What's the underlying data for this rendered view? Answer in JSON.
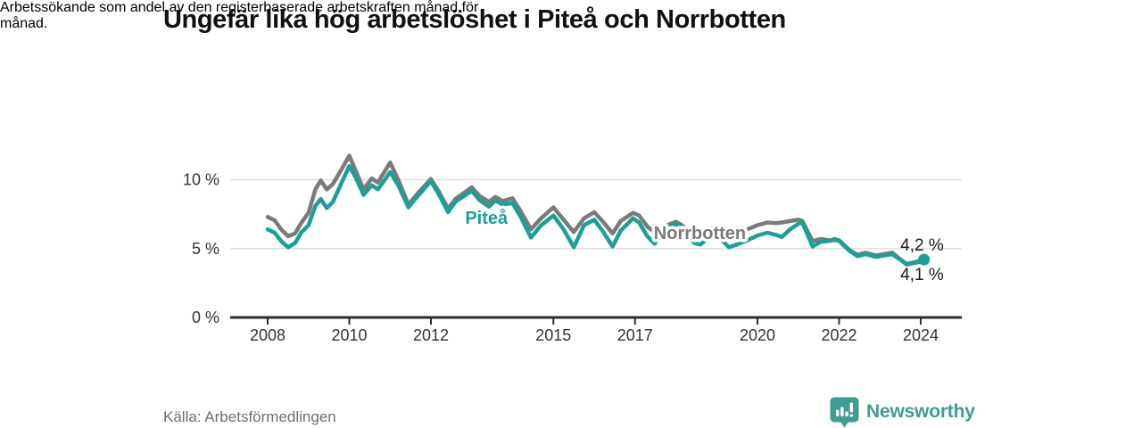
{
  "header": {
    "title": "Ungefär lika hög arbetslöshet i Piteå och Norrbotten",
    "subtitle_lines": [
      "Arbetssökande som andel av den registerbaserade arbetskraften månad för",
      "månad."
    ]
  },
  "footer": {
    "source": "Källa: Arbetsförmedlingen",
    "brand": "Newsworthy",
    "brand_icon": "newsworthy-bar-chart-speech-bubble-icon"
  },
  "colors": {
    "pitea_teal": "#1aa096",
    "norrbotten_gray": "#7a7a7a",
    "axis": "#2e2e2e",
    "grid": "#dcdcdc",
    "tick_text": "#333333",
    "value_label_text": "#1a1a1a",
    "logo_teal": "#3e9c93"
  },
  "chart_data": {
    "type": "line",
    "title": "Ungefär lika hög arbetslöshet i Piteå och Norrbotten",
    "subtitle": "Arbetssökande som andel av den registerbaserade arbetskraften månad för månad.",
    "xlabel": "",
    "ylabel": "",
    "grid": "horizontal",
    "legend_position": "inline-labels",
    "xlim": [
      2007.08,
      2025.0
    ],
    "ylim": [
      0,
      12.3
    ],
    "xticks": [
      {
        "value": 2008,
        "label": "2008"
      },
      {
        "value": 2010,
        "label": "2010"
      },
      {
        "value": 2012,
        "label": "2012"
      },
      {
        "value": 2015,
        "label": "2015"
      },
      {
        "value": 2017,
        "label": "2017"
      },
      {
        "value": 2020,
        "label": "2020"
      },
      {
        "value": 2022,
        "label": "2022"
      },
      {
        "value": 2024,
        "label": "2024"
      }
    ],
    "yticks": [
      {
        "value": 0,
        "label": "0 %"
      },
      {
        "value": 5,
        "label": "5 %"
      },
      {
        "value": 10,
        "label": "10 %"
      }
    ],
    "x": [
      2008.0,
      2008.17,
      2008.33,
      2008.5,
      2008.67,
      2008.83,
      2009.0,
      2009.17,
      2009.3,
      2009.45,
      2009.6,
      2009.8,
      2010.0,
      2010.15,
      2010.35,
      2010.55,
      2010.7,
      2011.0,
      2011.2,
      2011.45,
      2011.7,
      2012.0,
      2012.2,
      2012.42,
      2012.6,
      2013.0,
      2013.2,
      2013.42,
      2013.58,
      2013.75,
      2014.0,
      2014.2,
      2014.45,
      2014.7,
      2015.0,
      2015.25,
      2015.5,
      2015.75,
      2016.0,
      2016.2,
      2016.45,
      2016.65,
      2016.95,
      2017.1,
      2017.3,
      2017.48,
      2017.7,
      2018.0,
      2018.15,
      2018.45,
      2018.6,
      2018.85,
      2019.0,
      2019.3,
      2019.5,
      2019.75,
      2020.0,
      2020.25,
      2020.45,
      2020.6,
      2020.8,
      2021.0,
      2021.1,
      2021.35,
      2021.55,
      2021.75,
      2021.9,
      2022.0,
      2022.25,
      2022.45,
      2022.65,
      2022.9,
      2023.1,
      2023.3,
      2023.65,
      2023.85,
      2024.08
    ],
    "series": [
      {
        "name": "Norrbotten",
        "color": "#7a7a7a",
        "end_value_label": "4,1 %",
        "values": [
          7.3,
          7.05,
          6.4,
          5.9,
          6.1,
          6.9,
          7.6,
          9.3,
          9.95,
          9.3,
          9.7,
          10.7,
          11.75,
          10.7,
          9.3,
          10.1,
          9.8,
          11.25,
          10.0,
          8.2,
          9.1,
          10.05,
          9.1,
          7.9,
          8.6,
          9.45,
          8.8,
          8.4,
          8.75,
          8.45,
          8.65,
          7.7,
          6.4,
          7.2,
          8.0,
          7.1,
          6.2,
          7.2,
          7.65,
          7.0,
          6.1,
          7.0,
          7.6,
          7.4,
          6.6,
          6.2,
          6.6,
          6.95,
          6.7,
          6.0,
          6.1,
          6.45,
          6.55,
          6.0,
          6.1,
          6.4,
          6.7,
          6.9,
          6.85,
          6.9,
          7.0,
          7.1,
          7.0,
          5.55,
          5.7,
          5.6,
          5.6,
          5.6,
          4.9,
          4.55,
          4.7,
          4.5,
          4.6,
          4.7,
          3.85,
          3.95,
          4.1
        ]
      },
      {
        "name": "Piteå",
        "color": "#1aa096",
        "end_value_label": "4,2 %",
        "end_dot": true,
        "values": [
          6.4,
          6.15,
          5.55,
          5.1,
          5.4,
          6.2,
          6.7,
          8.1,
          8.6,
          7.95,
          8.4,
          9.7,
          11.0,
          10.2,
          8.9,
          9.6,
          9.3,
          10.55,
          9.6,
          8.0,
          8.9,
          9.9,
          8.9,
          7.65,
          8.4,
          9.2,
          8.5,
          8.05,
          8.5,
          8.2,
          8.3,
          7.3,
          5.8,
          6.7,
          7.4,
          6.4,
          5.1,
          6.7,
          7.1,
          6.3,
          5.15,
          6.3,
          7.2,
          6.9,
          5.9,
          5.35,
          6.3,
          6.8,
          6.55,
          5.4,
          5.3,
          5.9,
          6.0,
          5.1,
          5.3,
          5.6,
          5.95,
          6.15,
          6.0,
          5.85,
          6.4,
          6.8,
          6.9,
          5.15,
          5.5,
          5.55,
          5.7,
          5.55,
          4.85,
          4.45,
          4.6,
          4.4,
          4.5,
          4.6,
          3.9,
          4.0,
          4.2
        ]
      }
    ],
    "series_labels": [
      {
        "text": "Piteå",
        "x": 2013.36,
        "y": 7.25,
        "color": "#1aa096",
        "anchor": "middle"
      },
      {
        "text": "Norrbotten",
        "x": 2017.46,
        "y": 6.15,
        "color": "#7a7a7a",
        "anchor": "start"
      }
    ],
    "end_value_labels": [
      {
        "text": "4,2 %",
        "x": 2023.5,
        "y": 5.25
      },
      {
        "text": "4,1 %",
        "x": 2023.5,
        "y": 3.11
      }
    ]
  }
}
